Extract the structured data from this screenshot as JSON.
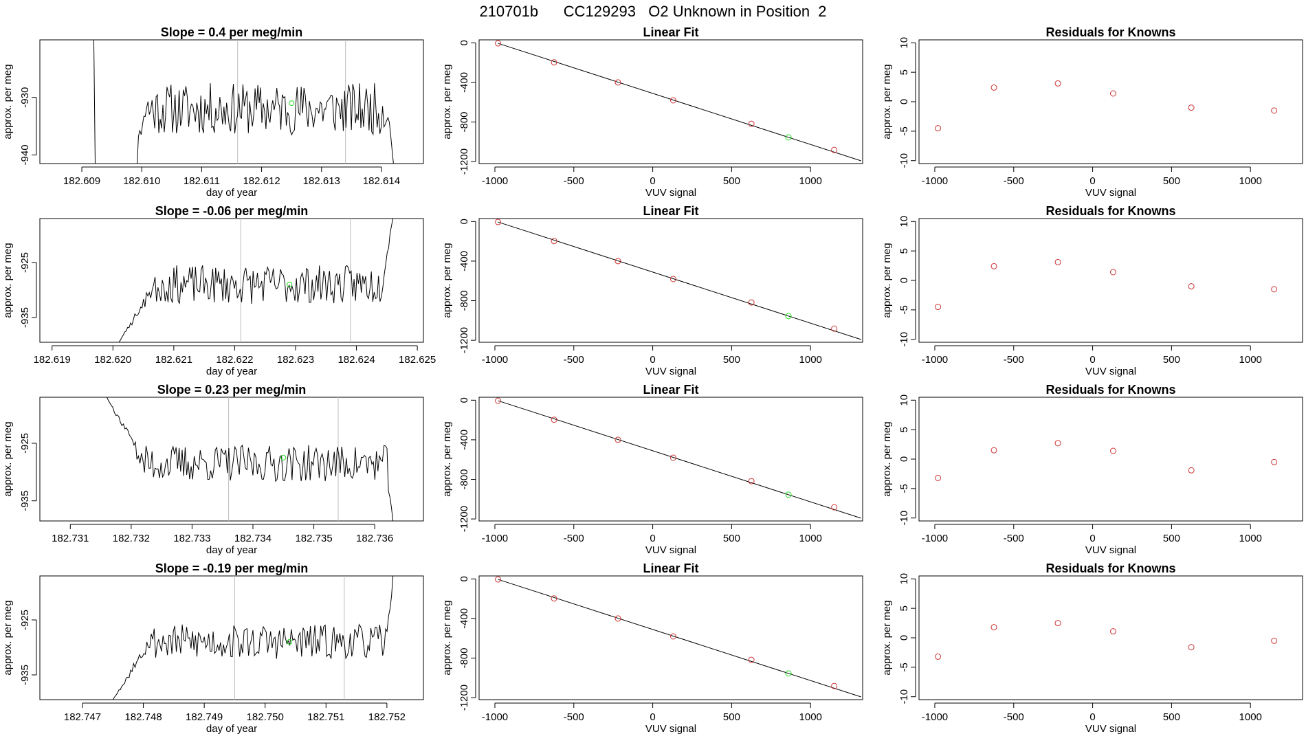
{
  "suptitle": "210701b      CC129293   O2 Unknown in Position  2",
  "colors": {
    "line": "#000000",
    "known_point": "#cd3333",
    "unknown_point": "#22dd22",
    "marker_line": "#bdbdbd",
    "axis": "#000000"
  },
  "chart_data": [
    {
      "type": "line",
      "panel": "timeseries",
      "title": "Slope =  0.4  per meg/min",
      "xlabel": "day of year",
      "ylabel": "approx. per meg",
      "xlim": [
        182.6083,
        182.6147
      ],
      "ylim": [
        -941.5,
        -920
      ],
      "xticks": [
        182.609,
        182.61,
        182.611,
        182.612,
        182.613,
        182.614
      ],
      "xtick_labels": [
        "182.609",
        "182.610",
        "182.611",
        "182.612",
        "182.613",
        "182.614"
      ],
      "yticks": [
        -940,
        -930
      ],
      "ytick_labels": [
        "-940",
        "-930"
      ],
      "vlines": [
        182.6116,
        182.6134
      ],
      "series_start": 182.6099,
      "series_end": 182.6142,
      "series_level": -932,
      "series_amp": 4.5,
      "seed": 11,
      "spike": {
        "x": 182.6092,
        "from": -920,
        "to": -941.5
      },
      "highlight": {
        "x": 182.6125,
        "y": -931
      }
    },
    {
      "type": "scatter",
      "panel": "fit",
      "title": "Linear Fit",
      "xlabel": "VUV signal",
      "ylabel": "approx. per meg",
      "xlim": [
        -1100,
        1330
      ],
      "ylim": [
        -1220,
        30
      ],
      "xticks": [
        -1000,
        -500,
        0,
        500,
        1000
      ],
      "xtick_labels": [
        "-1000",
        "-500",
        "0",
        "500",
        "1000"
      ],
      "yticks": [
        0,
        -400,
        -800,
        -1200
      ],
      "ytick_labels": [
        "0",
        "-400",
        "-800",
        "-1200"
      ],
      "known_x": [
        -980,
        -625,
        -220,
        130,
        625,
        1150
      ],
      "known_y": [
        -5,
        -197,
        -400,
        -581,
        -818,
        -1082
      ],
      "unknown": {
        "x": 860,
        "y": -955
      },
      "fit_line": {
        "x": [
          -980,
          1320
        ],
        "y": [
          -5,
          -1192
        ]
      }
    },
    {
      "type": "scatter",
      "panel": "residuals",
      "title": "Residuals for Knowns",
      "xlabel": "VUV signal",
      "ylabel": "approx. per meg",
      "xlim": [
        -1100,
        1330
      ],
      "ylim": [
        -10.5,
        10.5
      ],
      "xticks": [
        -1000,
        -500,
        0,
        500,
        1000
      ],
      "xtick_labels": [
        "-1000",
        "-500",
        "0",
        "500",
        "1000"
      ],
      "yticks": [
        10,
        5,
        0,
        -5,
        -10
      ],
      "ytick_labels": [
        "10",
        "5",
        "0",
        "-5",
        "-10"
      ],
      "x": [
        -980,
        -625,
        -220,
        130,
        625,
        1150
      ],
      "y": [
        -4.5,
        2.4,
        3.1,
        1.4,
        -1.0,
        -1.5
      ]
    },
    {
      "type": "line",
      "panel": "timeseries",
      "title": "Slope =  -0.06  per meg/min",
      "xlabel": "day of year",
      "ylabel": "approx. per meg",
      "xlim": [
        182.6188,
        182.6251
      ],
      "ylim": [
        -939.5,
        -917
      ],
      "xticks": [
        182.619,
        182.62,
        182.621,
        182.622,
        182.623,
        182.624,
        182.625
      ],
      "xtick_labels": [
        "182.619",
        "182.620",
        "182.621",
        "182.622",
        "182.623",
        "182.624",
        "182.625"
      ],
      "yticks": [
        -935,
        -925
      ],
      "ytick_labels": [
        "-935",
        "-925"
      ],
      "vlines": [
        182.6221,
        182.6239
      ],
      "series_start": 182.6201,
      "series_end": 182.6246,
      "series_level": -929,
      "series_amp": 3.5,
      "seed": 23,
      "ramp_start": {
        "from": -939.5,
        "to": -929,
        "width": 0.0006
      },
      "ramp_end": {
        "to": -917,
        "width": 0.0002
      },
      "highlight": {
        "x": 182.6229,
        "y": -929
      }
    },
    {
      "type": "scatter",
      "panel": "fit",
      "title": "Linear Fit",
      "xlabel": "VUV signal",
      "ylabel": "approx. per meg",
      "xlim": [
        -1100,
        1330
      ],
      "ylim": [
        -1220,
        30
      ],
      "xticks": [
        -1000,
        -500,
        0,
        500,
        1000
      ],
      "xtick_labels": [
        "-1000",
        "-500",
        "0",
        "500",
        "1000"
      ],
      "yticks": [
        0,
        -400,
        -800,
        -1200
      ],
      "ytick_labels": [
        "0",
        "-400",
        "-800",
        "-1200"
      ],
      "known_x": [
        -980,
        -625,
        -220,
        130,
        625,
        1150
      ],
      "known_y": [
        -5,
        -197,
        -400,
        -581,
        -818,
        -1082
      ],
      "unknown": {
        "x": 860,
        "y": -955
      },
      "fit_line": {
        "x": [
          -980,
          1320
        ],
        "y": [
          -5,
          -1192
        ]
      }
    },
    {
      "type": "scatter",
      "panel": "residuals",
      "title": "Residuals for Knowns",
      "xlabel": "VUV signal",
      "ylabel": "approx. per meg",
      "xlim": [
        -1100,
        1330
      ],
      "ylim": [
        -10.5,
        10.5
      ],
      "xticks": [
        -1000,
        -500,
        0,
        500,
        1000
      ],
      "xtick_labels": [
        "-1000",
        "-500",
        "0",
        "500",
        "1000"
      ],
      "yticks": [
        10,
        5,
        0,
        -5,
        -10
      ],
      "ytick_labels": [
        "10",
        "5",
        "0",
        "-5",
        "-10"
      ],
      "x": [
        -980,
        -625,
        -220,
        130,
        625,
        1150
      ],
      "y": [
        -4.5,
        2.4,
        3.1,
        1.4,
        -1.0,
        -1.5
      ]
    },
    {
      "type": "line",
      "panel": "timeseries",
      "title": "Slope =  0.23  per meg/min",
      "xlabel": "day of year",
      "ylabel": "approx. per meg",
      "xlim": [
        182.7305,
        182.7368
      ],
      "ylim": [
        -938.5,
        -917
      ],
      "xticks": [
        182.731,
        182.732,
        182.733,
        182.734,
        182.735,
        182.736
      ],
      "xtick_labels": [
        "182.731",
        "182.732",
        "182.733",
        "182.734",
        "182.735",
        "182.736"
      ],
      "yticks": [
        -935,
        -925
      ],
      "ytick_labels": [
        "-935",
        "-925"
      ],
      "vlines": [
        182.7336,
        182.7354
      ],
      "series_start": 182.7316,
      "series_end": 182.7363,
      "series_level": -928.5,
      "series_amp": 3.2,
      "seed": 37,
      "ramp_start": {
        "from": -917,
        "to": -928.5,
        "width": 0.0006
      },
      "ramp_end": {
        "to": -938.5,
        "width": 0.0001
      },
      "highlight": {
        "x": 182.7345,
        "y": -927.5
      }
    },
    {
      "type": "scatter",
      "panel": "fit",
      "title": "Linear Fit",
      "xlabel": "VUV signal",
      "ylabel": "approx. per meg",
      "xlim": [
        -1100,
        1330
      ],
      "ylim": [
        -1220,
        30
      ],
      "xticks": [
        -1000,
        -500,
        0,
        500,
        1000
      ],
      "xtick_labels": [
        "-1000",
        "-500",
        "0",
        "500",
        "1000"
      ],
      "yticks": [
        0,
        -400,
        -800,
        -1200
      ],
      "ytick_labels": [
        "0",
        "-400",
        "-800",
        "-1200"
      ],
      "known_x": [
        -980,
        -625,
        -220,
        130,
        625,
        1150
      ],
      "known_y": [
        -5,
        -197,
        -400,
        -581,
        -818,
        -1082
      ],
      "unknown": {
        "x": 860,
        "y": -955
      },
      "fit_line": {
        "x": [
          -980,
          1320
        ],
        "y": [
          -5,
          -1192
        ]
      }
    },
    {
      "type": "scatter",
      "panel": "residuals",
      "title": "Residuals for Knowns",
      "xlabel": "VUV signal",
      "ylabel": "approx. per meg",
      "xlim": [
        -1100,
        1330
      ],
      "ylim": [
        -10.5,
        10.5
      ],
      "xticks": [
        -1000,
        -500,
        0,
        500,
        1000
      ],
      "xtick_labels": [
        "-1000",
        "-500",
        "0",
        "500",
        "1000"
      ],
      "yticks": [
        10,
        5,
        0,
        -5,
        -10
      ],
      "ytick_labels": [
        "10",
        "5",
        "0",
        "-5",
        "-10"
      ],
      "x": [
        -980,
        -625,
        -220,
        130,
        625,
        1150
      ],
      "y": [
        -3.2,
        1.5,
        2.7,
        1.4,
        -1.9,
        -0.5
      ]
    },
    {
      "type": "line",
      "panel": "timeseries",
      "title": "Slope =  -0.19  per meg/min",
      "xlabel": "day of year",
      "ylabel": "approx. per meg",
      "xlim": [
        182.7463,
        182.7526
      ],
      "ylim": [
        -939.5,
        -917
      ],
      "xticks": [
        182.747,
        182.748,
        182.749,
        182.75,
        182.751,
        182.752
      ],
      "xtick_labels": [
        "182.747",
        "182.748",
        "182.749",
        "182.750",
        "182.751",
        "182.752"
      ],
      "yticks": [
        -935,
        -925
      ],
      "ytick_labels": [
        "-935",
        "-925"
      ],
      "vlines": [
        182.7495,
        182.7513
      ],
      "series_start": 182.7475,
      "series_end": 182.7521,
      "series_level": -929,
      "series_amp": 3.2,
      "seed": 53,
      "ramp_start": {
        "from": -939.5,
        "to": -929,
        "width": 0.0006
      },
      "ramp_end": {
        "to": -917,
        "width": 0.0001
      },
      "highlight": {
        "x": 182.7504,
        "y": -929
      }
    },
    {
      "type": "scatter",
      "panel": "fit",
      "title": "Linear Fit",
      "xlabel": "VUV signal",
      "ylabel": "approx. per meg",
      "xlim": [
        -1100,
        1330
      ],
      "ylim": [
        -1220,
        30
      ],
      "xticks": [
        -1000,
        -500,
        0,
        500,
        1000
      ],
      "xtick_labels": [
        "-1000",
        "-500",
        "0",
        "500",
        "1000"
      ],
      "yticks": [
        0,
        -400,
        -800,
        -1200
      ],
      "ytick_labels": [
        "0",
        "-400",
        "-800",
        "-1200"
      ],
      "known_x": [
        -980,
        -625,
        -220,
        130,
        625,
        1150
      ],
      "known_y": [
        -5,
        -197,
        -400,
        -581,
        -818,
        -1082
      ],
      "unknown": {
        "x": 860,
        "y": -955
      },
      "fit_line": {
        "x": [
          -980,
          1320
        ],
        "y": [
          -5,
          -1192
        ]
      }
    },
    {
      "type": "scatter",
      "panel": "residuals",
      "title": "Residuals for Knowns",
      "xlabel": "VUV signal",
      "ylabel": "approx. per meg",
      "xlim": [
        -1100,
        1330
      ],
      "ylim": [
        -10.5,
        10.5
      ],
      "xticks": [
        -1000,
        -500,
        0,
        500,
        1000
      ],
      "xtick_labels": [
        "-1000",
        "-500",
        "0",
        "500",
        "1000"
      ],
      "yticks": [
        10,
        5,
        0,
        -5,
        -10
      ],
      "ytick_labels": [
        "10",
        "5",
        "0",
        "-5",
        "-10"
      ],
      "x": [
        -980,
        -625,
        -220,
        130,
        625,
        1150
      ],
      "y": [
        -3.2,
        1.8,
        2.5,
        1.1,
        -1.6,
        -0.5
      ]
    }
  ]
}
